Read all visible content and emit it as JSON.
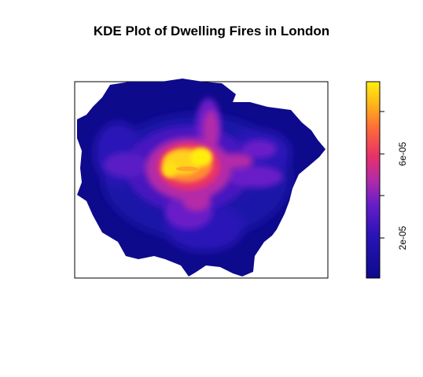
{
  "title": "KDE Plot of Dwelling Fires in London",
  "colorbar": {
    "ticks": [
      {
        "value": "2e-05"
      },
      {
        "value": "6e-05"
      }
    ],
    "colors": [
      "#0d0a8c",
      "#2a14b8",
      "#6a1ec8",
      "#b42ba8",
      "#e8306a",
      "#ff6a3a",
      "#ffb21a",
      "#ffee10"
    ]
  }
}
